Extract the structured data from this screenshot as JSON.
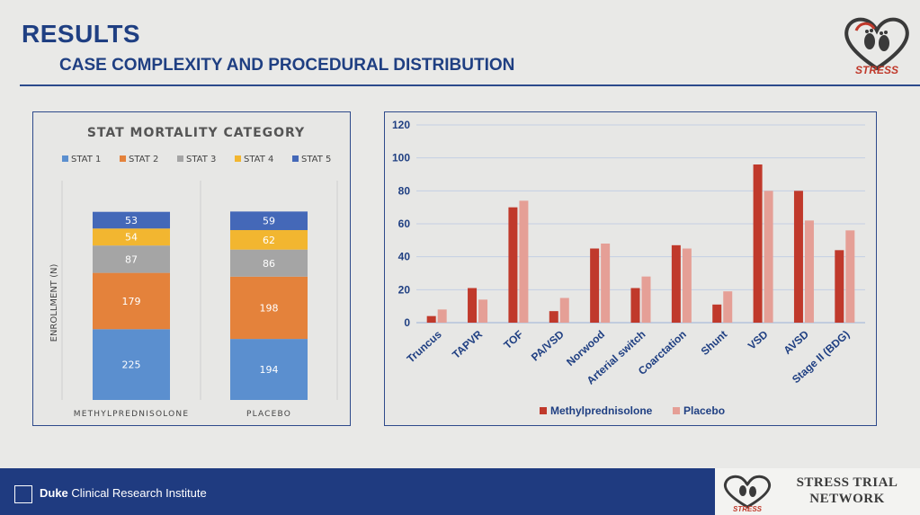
{
  "header": {
    "title": "RESULTS",
    "subtitle": "CASE COMPLEXITY AND PROCEDURAL DISTRIBUTION",
    "logo_text": "STRESS"
  },
  "footer": {
    "institute_bold": "Duke",
    "institute_rest": " Clinical Research Institute",
    "network_line1": "STRESS TRIAL",
    "network_line2": "NETWORK",
    "logo_text": "STRESS"
  },
  "colors": {
    "accent_blue": "#1f3f82",
    "stat1": "#5b8fcf",
    "stat2": "#e4823b",
    "stat3": "#a5a5a5",
    "stat4": "#f2b630",
    "stat5": "#4468b8",
    "methylprednisolone": "#c0392b",
    "placebo": "#e59f96"
  },
  "chart_data": [
    {
      "type": "bar",
      "stacked": true,
      "title": "STAT MORTALITY CATEGORY",
      "ylabel": "ENROLLMENT (N)",
      "xlabel": "",
      "categories": [
        "METHYLPREDNISOLONE",
        "PLACEBO"
      ],
      "legend_position": "top",
      "series": [
        {
          "name": "STAT 1",
          "values": [
            225,
            194
          ]
        },
        {
          "name": "STAT 2",
          "values": [
            179,
            198
          ]
        },
        {
          "name": "STAT 3",
          "values": [
            87,
            86
          ]
        },
        {
          "name": "STAT 4",
          "values": [
            54,
            62
          ]
        },
        {
          "name": "STAT 5",
          "values": [
            53,
            59
          ]
        }
      ],
      "grid": false
    },
    {
      "type": "bar",
      "title": "",
      "xlabel": "",
      "ylabel": "",
      "categories": [
        "Truncus",
        "TAPVR",
        "TOF",
        "PA/VSD",
        "Norwood",
        "Arterial switch",
        "Coarctation",
        "Shunt",
        "VSD",
        "AVSD",
        "Stage II (BDG)"
      ],
      "series": [
        {
          "name": "Methylprednisolone",
          "values": [
            4,
            21,
            70,
            7,
            45,
            21,
            47,
            11,
            96,
            80,
            44
          ]
        },
        {
          "name": "Placebo",
          "values": [
            8,
            14,
            74,
            15,
            48,
            28,
            45,
            19,
            80,
            62,
            56
          ]
        }
      ],
      "ylim": [
        0,
        120
      ],
      "yticks": [
        0,
        20,
        40,
        60,
        80,
        100,
        120
      ],
      "grid": true,
      "legend_position": "bottom"
    }
  ]
}
